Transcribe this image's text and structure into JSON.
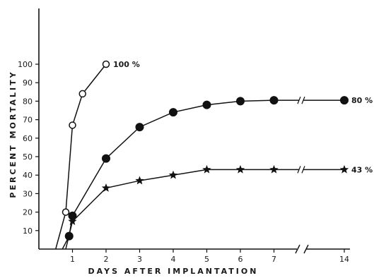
{
  "chart_data": {
    "type": "line",
    "xlabel": "DAYS AFTER IMPLANTATION",
    "ylabel": "PERCENT MORTALITY",
    "ylim": [
      0,
      110
    ],
    "xlim": [
      0,
      14
    ],
    "x_axis_break": "between 7 and 14",
    "x_ticks": [
      1,
      2,
      3,
      4,
      5,
      6,
      7,
      14
    ],
    "y_ticks": [
      10,
      20,
      30,
      40,
      50,
      60,
      70,
      80,
      90,
      100
    ],
    "grid": false,
    "series": [
      {
        "marker": "open-circle",
        "end_label": "100 %",
        "x": [
          0.5,
          0.8,
          1.0,
          1.3,
          2.0
        ],
        "y": [
          0,
          20,
          67,
          84,
          100
        ]
      },
      {
        "marker": "filled-circle",
        "end_label": "80 %",
        "x": [
          0.7,
          0.9,
          1.0,
          2.0,
          3.0,
          4.0,
          5.0,
          6.0,
          7.0,
          14.0
        ],
        "y": [
          0,
          7,
          18,
          49,
          66,
          74,
          78,
          80,
          80.5,
          80.5
        ]
      },
      {
        "marker": "star",
        "end_label": "43 %",
        "x": [
          0.8,
          1.0,
          2.0,
          3.0,
          4.0,
          5.0,
          6.0,
          7.0,
          14.0
        ],
        "y": [
          0,
          15,
          33,
          37,
          40,
          43,
          43,
          43,
          43
        ]
      }
    ]
  }
}
